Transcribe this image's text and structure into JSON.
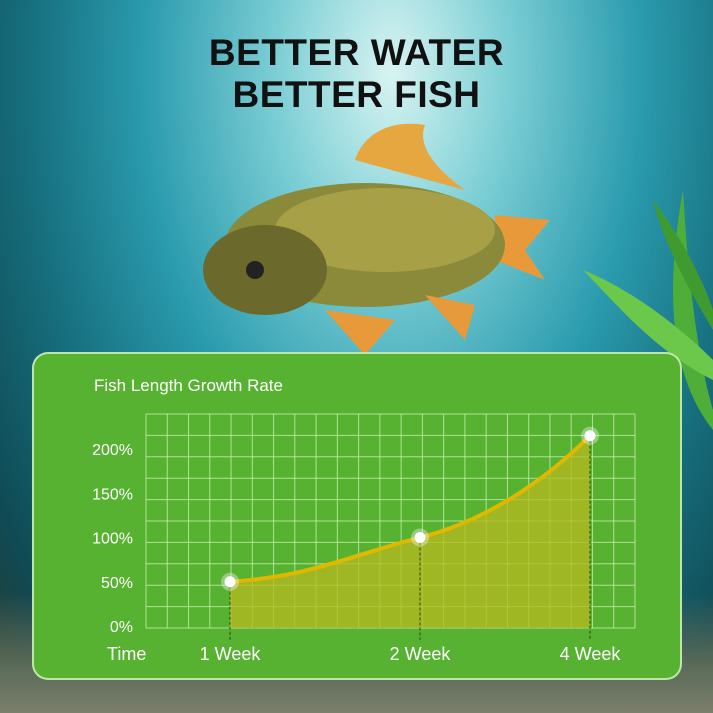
{
  "headline": {
    "line1": "BETTER WATER",
    "line2": "BETTER FISH"
  },
  "chart_data": {
    "type": "area",
    "title": "Fish Length Growth Rate",
    "xlabel": "Time",
    "categories": [
      "1 Week",
      "2 Week",
      "4 Week"
    ],
    "x": [
      1,
      2,
      4
    ],
    "values": [
      50,
      100,
      215
    ],
    "ylim": [
      0,
      240
    ],
    "yticks": [
      "0%",
      "50%",
      "100%",
      "150%",
      "200%"
    ],
    "ytick_values": [
      0,
      50,
      100,
      150,
      200
    ],
    "grid": true,
    "colors": {
      "background": "#58b232",
      "line": "#e0b800",
      "fill": "#b5b81e",
      "grid": "#c8ecb0",
      "point": "#ffffff"
    }
  }
}
